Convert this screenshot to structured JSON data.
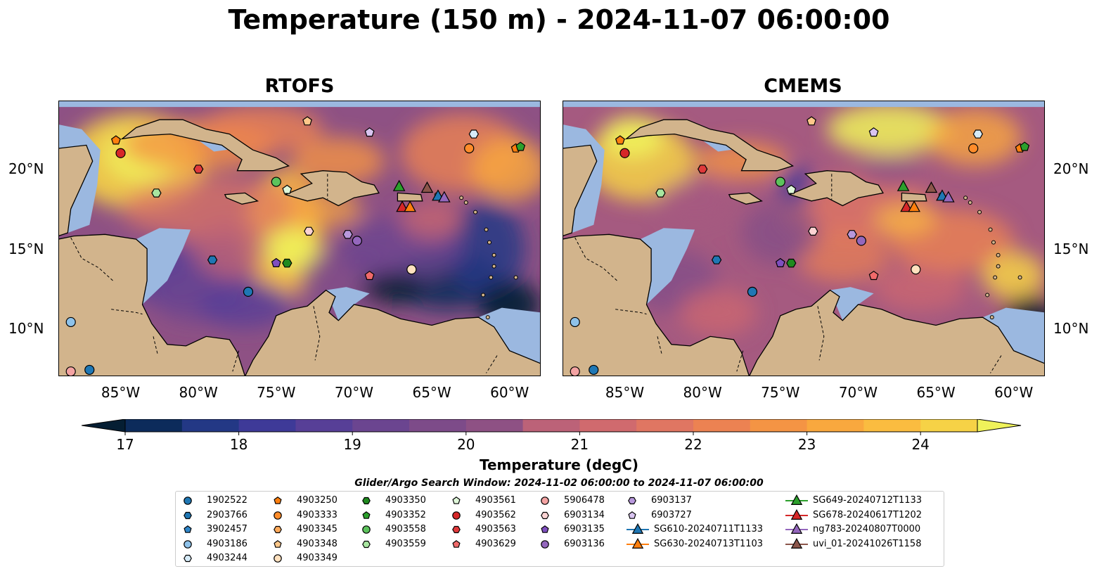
{
  "title": "Temperature (150 m) - 2024-11-07 06:00:00",
  "colors": {
    "land": "#d2b48c",
    "shelf": "#9bb8e0",
    "deep_water": "#06263a",
    "colormap": [
      "#051e33",
      "#0c2b5b",
      "#233885",
      "#3e3a98",
      "#573f97",
      "#6b4590",
      "#7d4b89",
      "#8e5184",
      "#a55a80",
      "#bc6278",
      "#d06a6e",
      "#e07662",
      "#ec8252",
      "#f49444",
      "#f9a83e",
      "#fabc40",
      "#f6d246",
      "#eff25a"
    ]
  },
  "panels": [
    {
      "title": "RTOFS"
    },
    {
      "title": "CMEMS"
    }
  ],
  "axes": {
    "x_ticks": [
      "85°W",
      "80°W",
      "75°W",
      "70°W",
      "65°W",
      "60°W"
    ],
    "y_ticks": [
      "20°N",
      "15°N",
      "10°N"
    ]
  },
  "colorbar": {
    "label": "Temperature (degC)",
    "ticks": [
      "17",
      "18",
      "19",
      "20",
      "21",
      "22",
      "23",
      "24"
    ],
    "min": 17,
    "max": 24.5,
    "extend": "both"
  },
  "search_window": "Glider/Argo Search Window: 2024-11-02 06:00:00 to 2024-11-07 06:00:00",
  "legend": [
    {
      "id": "1902522",
      "marker": "circle",
      "color": "#1f77b4"
    },
    {
      "id": "2903766",
      "marker": "hexagon",
      "color": "#1f77b4"
    },
    {
      "id": "3902457",
      "marker": "pentagon",
      "color": "#2f86c9"
    },
    {
      "id": "4903186",
      "marker": "circle",
      "color": "#8ec2ea"
    },
    {
      "id": "4903244",
      "marker": "hexagon",
      "color": "#d6ebf8"
    },
    {
      "id": "4903250",
      "marker": "pentagon",
      "color": "#ff7f0e"
    },
    {
      "id": "4903333",
      "marker": "circle",
      "color": "#ff8c2a"
    },
    {
      "id": "4903345",
      "marker": "hexagon",
      "color": "#ffaa5a"
    },
    {
      "id": "4903348",
      "marker": "pentagon",
      "color": "#ffc88a"
    },
    {
      "id": "4903349",
      "marker": "circle",
      "color": "#ffe1bf"
    },
    {
      "id": "4903350",
      "marker": "hexagon",
      "color": "#1f8a1f"
    },
    {
      "id": "4903352",
      "marker": "pentagon",
      "color": "#2ca02c"
    },
    {
      "id": "4903558",
      "marker": "circle",
      "color": "#5cc35c"
    },
    {
      "id": "4903559",
      "marker": "hexagon",
      "color": "#a8e6a0"
    },
    {
      "id": "4903561",
      "marker": "pentagon",
      "color": "#dff7d9"
    },
    {
      "id": "4903562",
      "marker": "circle",
      "color": "#d62728"
    },
    {
      "id": "4903563",
      "marker": "hexagon",
      "color": "#e0393b"
    },
    {
      "id": "4903629",
      "marker": "pentagon",
      "color": "#f06a6a"
    },
    {
      "id": "5906478",
      "marker": "circle",
      "color": "#f4a3a3"
    },
    {
      "id": "6903134",
      "marker": "hexagon",
      "color": "#fbd3d3"
    },
    {
      "id": "6903135",
      "marker": "pentagon",
      "color": "#7f4fbf"
    },
    {
      "id": "6903136",
      "marker": "circle",
      "color": "#9467bd"
    },
    {
      "id": "6903137",
      "marker": "hexagon",
      "color": "#b898dc"
    },
    {
      "id": "6903727",
      "marker": "pentagon",
      "color": "#d9c4f0"
    },
    {
      "id": "SG610-20240711T1133",
      "marker": "triangle",
      "color": "#1f77b4"
    },
    {
      "id": "SG630-20240713T1103",
      "marker": "triangle",
      "color": "#ff7f0e"
    },
    {
      "id": "SG649-20240712T1133",
      "marker": "triangle",
      "color": "#2ca02c"
    },
    {
      "id": "SG678-20240617T1202",
      "marker": "triangle",
      "color": "#d62728"
    },
    {
      "id": "ng783-20240807T0000",
      "marker": "triangle",
      "color": "#9467bd"
    },
    {
      "id": "uvi_01-20241026T1158",
      "marker": "triangle",
      "color": "#8c564b"
    }
  ],
  "map_extent": {
    "lon_min": -89,
    "lon_max": -58,
    "lat_min": 7,
    "lat_max": 24.3
  },
  "observations": [
    {
      "id": "1902522",
      "lon": -87.0,
      "lat": 7.4
    },
    {
      "id": "4903186",
      "lon": -88.2,
      "lat": 10.4
    },
    {
      "id": "5906478",
      "lon": -88.2,
      "lat": 7.3
    },
    {
      "id": "4903250",
      "lon": -85.3,
      "lat": 21.8
    },
    {
      "id": "4903562",
      "lon": -85.0,
      "lat": 21.0
    },
    {
      "id": "4903563",
      "lon": -80.0,
      "lat": 20.0
    },
    {
      "id": "4903559",
      "lon": -82.7,
      "lat": 18.5
    },
    {
      "id": "4903561",
      "lon": -74.3,
      "lat": 18.7
    },
    {
      "id": "4903558",
      "lon": -75.0,
      "lat": 19.2
    },
    {
      "id": "4903348",
      "lon": -73.0,
      "lat": 23.0
    },
    {
      "id": "6903727",
      "lon": -69.0,
      "lat": 22.3
    },
    {
      "id": "4903244",
      "lon": -62.3,
      "lat": 22.2
    },
    {
      "id": "4903333",
      "lon": -62.6,
      "lat": 21.3
    },
    {
      "id": "4903250",
      "lon": -59.6,
      "lat": 21.3
    },
    {
      "id": "4903352",
      "lon": -59.3,
      "lat": 21.4
    },
    {
      "id": "2903766",
      "lon": -79.1,
      "lat": 14.3
    },
    {
      "id": "6903135",
      "lon": -75.0,
      "lat": 14.1
    },
    {
      "id": "4903350",
      "lon": -74.3,
      "lat": 14.1
    },
    {
      "id": "6903134",
      "lon": -72.9,
      "lat": 16.1
    },
    {
      "id": "6903137",
      "lon": -70.4,
      "lat": 15.9
    },
    {
      "id": "6903136",
      "lon": -69.8,
      "lat": 15.5
    },
    {
      "id": "4903629",
      "lon": -69.0,
      "lat": 13.3
    },
    {
      "id": "4903349",
      "lon": -66.3,
      "lat": 13.7
    },
    {
      "id": "1902522",
      "lon": -76.8,
      "lat": 12.3
    },
    {
      "id": "SG649-20240712T1133",
      "lon": -67.1,
      "lat": 18.9
    },
    {
      "id": "SG678-20240617T1202",
      "lon": -66.9,
      "lat": 17.6
    },
    {
      "id": "SG630-20240713T1103",
      "lon": -66.4,
      "lat": 17.6
    },
    {
      "id": "uvi_01-20241026T1158",
      "lon": -65.3,
      "lat": 18.8
    },
    {
      "id": "SG610-20240711T1133",
      "lon": -64.6,
      "lat": 18.3
    },
    {
      "id": "ng783-20240807T0000",
      "lon": -64.2,
      "lat": 18.2
    }
  ]
}
